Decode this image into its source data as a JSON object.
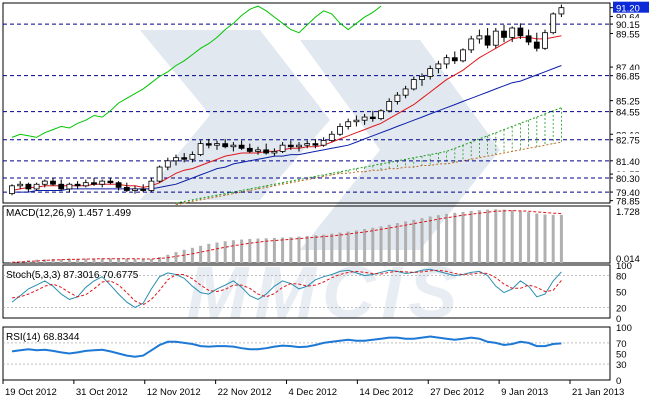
{
  "colors": {
    "background": "#ffffff",
    "frame": "#000000",
    "level": "#00008b",
    "candle_up": "#ffffff",
    "candle_down": "#000000",
    "tenkan": "#e0161b",
    "kijun": "#0c1fa8",
    "chikou": "#00c400",
    "cloud": "#1c9a1c",
    "cloud_alt": "#c06a20",
    "macd_hist": "#b0b0b0",
    "macd_signal": "#e0161b",
    "stoch_main": "#2a8fb0",
    "stoch_signal": "#e0161b",
    "rsi": "#1e78d6",
    "price_tag_bg": "#0c2ad8",
    "price_tag_text": "#ffffff",
    "watermark": "#c9d6e2"
  },
  "watermark": {
    "text": "MMCIS"
  },
  "chart_data": [
    {
      "type": "candlestick",
      "panel": "price",
      "y_axis_labels": [
        "91.20",
        "90.64",
        "90.15",
        "89.55",
        "87.40",
        "86.85",
        "85.25",
        "84.55",
        "83.10",
        "82.75",
        "81.40",
        "80.55",
        "80.30",
        "79.40",
        "78.85"
      ],
      "highlighted_labels": [
        "91.20",
        "90.15",
        "86.85",
        "84.55",
        "82.75",
        "81.40",
        "80.30",
        "79.40"
      ],
      "horizontal_levels": [
        90.15,
        86.85,
        84.55,
        82.75,
        81.4,
        80.3,
        79.4
      ],
      "ylim": [
        78.7,
        91.5
      ],
      "x_tick_labels": [
        "19 Oct 2012",
        "31 Oct 2012",
        "12 Nov 2012",
        "22 Nov 2012",
        "4 Dec 2012",
        "14 Dec 2012",
        "27 Dec 2012",
        "9 Jan 2013",
        "21 Jan 2013"
      ],
      "ohlc": [
        [
          79.3,
          79.9,
          79.2,
          79.8
        ],
        [
          79.8,
          80.1,
          79.6,
          79.9
        ],
        [
          79.9,
          80.0,
          79.4,
          79.6
        ],
        [
          79.6,
          80.0,
          79.5,
          79.9
        ],
        [
          79.9,
          80.2,
          79.7,
          80.1
        ],
        [
          80.1,
          80.3,
          79.8,
          79.9
        ],
        [
          79.9,
          80.2,
          79.5,
          79.6
        ],
        [
          79.6,
          80.0,
          79.4,
          79.9
        ],
        [
          79.9,
          80.1,
          79.6,
          79.8
        ],
        [
          79.8,
          80.2,
          79.7,
          80.0
        ],
        [
          80.0,
          80.3,
          79.8,
          79.9
        ],
        [
          79.9,
          80.2,
          79.7,
          80.1
        ],
        [
          80.1,
          80.3,
          79.9,
          80.0
        ],
        [
          80.0,
          80.1,
          79.5,
          79.7
        ],
        [
          79.7,
          80.0,
          79.4,
          79.5
        ],
        [
          79.5,
          79.8,
          79.3,
          79.6
        ],
        [
          79.6,
          79.9,
          79.4,
          79.5
        ],
        [
          79.5,
          80.3,
          79.4,
          80.1
        ],
        [
          80.1,
          81.1,
          80.0,
          81.0
        ],
        [
          81.0,
          81.6,
          80.8,
          81.4
        ],
        [
          81.4,
          81.8,
          81.1,
          81.6
        ],
        [
          81.6,
          81.9,
          81.3,
          81.5
        ],
        [
          81.5,
          82.0,
          81.3,
          81.8
        ],
        [
          81.8,
          82.7,
          81.7,
          82.5
        ],
        [
          82.5,
          82.8,
          82.2,
          82.4
        ],
        [
          82.4,
          82.7,
          82.1,
          82.5
        ],
        [
          82.5,
          82.8,
          82.2,
          82.3
        ],
        [
          82.3,
          82.6,
          82.0,
          82.4
        ],
        [
          82.4,
          82.7,
          82.1,
          82.2
        ],
        [
          82.2,
          82.5,
          81.9,
          82.0
        ],
        [
          82.0,
          82.3,
          81.8,
          82.1
        ],
        [
          82.1,
          82.5,
          81.8,
          81.9
        ],
        [
          81.9,
          82.2,
          81.7,
          82.0
        ],
        [
          82.0,
          82.6,
          81.9,
          82.4
        ],
        [
          82.4,
          82.7,
          82.1,
          82.3
        ],
        [
          82.3,
          82.6,
          82.0,
          82.4
        ],
        [
          82.4,
          82.7,
          82.2,
          82.5
        ],
        [
          82.5,
          82.8,
          82.2,
          82.4
        ],
        [
          82.4,
          82.9,
          82.3,
          82.7
        ],
        [
          82.7,
          83.3,
          82.6,
          83.1
        ],
        [
          83.1,
          83.8,
          83.0,
          83.6
        ],
        [
          83.6,
          84.1,
          83.4,
          83.9
        ],
        [
          83.9,
          84.3,
          83.6,
          84.0
        ],
        [
          84.0,
          84.4,
          83.7,
          84.2
        ],
        [
          84.2,
          84.6,
          83.9,
          84.1
        ],
        [
          84.1,
          84.7,
          84.0,
          84.6
        ],
        [
          84.6,
          85.4,
          84.5,
          85.2
        ],
        [
          85.2,
          85.8,
          85.0,
          85.6
        ],
        [
          85.6,
          86.2,
          85.4,
          86.0
        ],
        [
          86.0,
          86.8,
          85.9,
          86.6
        ],
        [
          86.6,
          87.0,
          86.2,
          86.8
        ],
        [
          86.8,
          87.5,
          86.6,
          87.3
        ],
        [
          87.3,
          87.8,
          87.0,
          87.6
        ],
        [
          87.6,
          88.2,
          87.3,
          88.0
        ],
        [
          88.0,
          88.4,
          87.6,
          87.8
        ],
        [
          87.8,
          88.6,
          87.7,
          88.5
        ],
        [
          88.5,
          89.4,
          88.3,
          89.2
        ],
        [
          89.2,
          89.8,
          88.9,
          89.4
        ],
        [
          89.4,
          89.9,
          88.6,
          88.8
        ],
        [
          88.8,
          89.9,
          88.6,
          89.7
        ],
        [
          89.7,
          90.1,
          89.0,
          89.3
        ],
        [
          89.3,
          90.0,
          89.0,
          89.9
        ],
        [
          89.9,
          90.2,
          89.2,
          89.4
        ],
        [
          89.4,
          89.8,
          88.8,
          89.0
        ],
        [
          89.0,
          89.6,
          88.4,
          88.6
        ],
        [
          88.6,
          89.8,
          88.5,
          89.6
        ],
        [
          89.6,
          90.9,
          89.5,
          90.8
        ],
        [
          90.8,
          91.4,
          90.6,
          91.2
        ]
      ],
      "tenkan": [
        79.5,
        79.6,
        79.7,
        79.7,
        79.8,
        79.8,
        79.8,
        79.8,
        79.8,
        79.8,
        79.9,
        79.9,
        79.9,
        79.9,
        79.8,
        79.8,
        79.7,
        79.8,
        80.0,
        80.3,
        80.6,
        80.8,
        80.9,
        81.1,
        81.3,
        81.5,
        81.7,
        81.8,
        81.9,
        81.9,
        81.9,
        82.0,
        82.0,
        82.1,
        82.2,
        82.2,
        82.3,
        82.3,
        82.4,
        82.6,
        82.8,
        83.0,
        83.2,
        83.4,
        83.6,
        83.8,
        84.1,
        84.4,
        84.7,
        85.0,
        85.4,
        85.8,
        86.2,
        86.6,
        86.9,
        87.2,
        87.6,
        88.0,
        88.3,
        88.6,
        88.9,
        89.2,
        89.3,
        89.3,
        89.2,
        89.2,
        89.3,
        89.4
      ],
      "kijun": [
        79.4,
        79.4,
        79.4,
        79.5,
        79.5,
        79.5,
        79.5,
        79.6,
        79.6,
        79.6,
        79.6,
        79.6,
        79.6,
        79.6,
        79.6,
        79.6,
        79.6,
        79.6,
        79.7,
        79.8,
        79.9,
        80.1,
        80.3,
        80.5,
        80.7,
        80.9,
        81.0,
        81.2,
        81.3,
        81.4,
        81.5,
        81.6,
        81.7,
        81.7,
        81.8,
        81.8,
        81.9,
        82.0,
        82.1,
        82.2,
        82.3,
        82.4,
        82.6,
        82.8,
        83.0,
        83.2,
        83.4,
        83.6,
        83.8,
        84.0,
        84.2,
        84.4,
        84.6,
        84.8,
        85.0,
        85.2,
        85.4,
        85.6,
        85.8,
        86.0,
        86.2,
        86.4,
        86.5,
        86.7,
        86.9,
        87.1,
        87.3,
        87.5
      ],
      "chikou": [
        82.9,
        83.1,
        83.0,
        82.9,
        83.2,
        83.4,
        83.6,
        83.5,
        83.8,
        84.0,
        84.3,
        84.2,
        84.6,
        85.1,
        85.4,
        85.7,
        86.0,
        86.4,
        86.8,
        87.1,
        87.5,
        87.8,
        88.2,
        88.6,
        88.9,
        89.3,
        89.8,
        90.2,
        90.7,
        91.1,
        91.3,
        91.0,
        90.6,
        90.2,
        89.8,
        89.6,
        90.1,
        90.6,
        91.0,
        90.8,
        90.2,
        89.8,
        90.2,
        90.6,
        90.9,
        91.3
      ],
      "senkou_a": [
        78.7,
        78.8,
        78.9,
        79.0,
        79.1,
        79.2,
        79.3,
        79.4,
        79.5,
        79.6,
        79.7,
        79.8,
        79.9,
        80.0,
        80.1,
        80.2,
        80.3,
        80.4,
        80.5,
        80.6,
        80.7,
        80.8,
        80.9,
        81.0,
        81.1,
        81.2,
        81.3,
        81.4,
        81.5,
        81.6,
        81.7,
        81.8,
        81.9,
        82.0,
        82.2,
        82.4,
        82.6,
        82.8,
        83.0,
        83.2,
        83.4,
        83.6,
        83.8,
        84.0,
        84.2,
        84.4,
        84.6,
        84.8
      ],
      "senkou_b": [
        78.6,
        78.7,
        78.8,
        78.9,
        79.0,
        79.1,
        79.2,
        79.3,
        79.4,
        79.5,
        79.6,
        79.7,
        79.8,
        79.9,
        80.0,
        80.1,
        80.2,
        80.3,
        80.4,
        80.5,
        80.6,
        80.6,
        80.7,
        80.7,
        80.8,
        80.8,
        80.9,
        80.9,
        81.0,
        81.0,
        81.1,
        81.1,
        81.2,
        81.2,
        81.3,
        81.4,
        81.5,
        81.6,
        81.7,
        81.8,
        81.9,
        82.0,
        82.1,
        82.2,
        82.3,
        82.4,
        82.5,
        82.6
      ]
    },
    {
      "type": "bar",
      "panel": "macd",
      "title": "MACD(12,26,9) 1.457 1.499",
      "y_axis_labels": [
        "1.728",
        "0.014"
      ],
      "ylim": [
        0,
        1.728
      ],
      "histogram": [
        0.02,
        0.05,
        0.08,
        0.1,
        0.11,
        0.12,
        0.12,
        0.13,
        0.13,
        0.13,
        0.14,
        0.14,
        0.14,
        0.14,
        0.13,
        0.12,
        0.11,
        0.12,
        0.18,
        0.25,
        0.33,
        0.4,
        0.46,
        0.52,
        0.58,
        0.62,
        0.66,
        0.69,
        0.71,
        0.73,
        0.74,
        0.75,
        0.76,
        0.77,
        0.78,
        0.8,
        0.82,
        0.84,
        0.86,
        0.89,
        0.92,
        0.95,
        0.99,
        1.03,
        1.07,
        1.11,
        1.16,
        1.21,
        1.26,
        1.31,
        1.36,
        1.41,
        1.45,
        1.49,
        1.52,
        1.55,
        1.58,
        1.6,
        1.62,
        1.63,
        1.62,
        1.6,
        1.57,
        1.54,
        1.5,
        1.47,
        1.46,
        1.46
      ],
      "signal": [
        0.02,
        0.03,
        0.05,
        0.06,
        0.08,
        0.09,
        0.1,
        0.11,
        0.11,
        0.12,
        0.12,
        0.13,
        0.13,
        0.13,
        0.13,
        0.13,
        0.12,
        0.12,
        0.14,
        0.16,
        0.2,
        0.24,
        0.28,
        0.33,
        0.38,
        0.43,
        0.48,
        0.52,
        0.56,
        0.6,
        0.63,
        0.66,
        0.68,
        0.7,
        0.72,
        0.74,
        0.76,
        0.78,
        0.8,
        0.82,
        0.85,
        0.88,
        0.91,
        0.94,
        0.98,
        1.02,
        1.06,
        1.1,
        1.15,
        1.19,
        1.24,
        1.28,
        1.33,
        1.37,
        1.41,
        1.45,
        1.48,
        1.51,
        1.54,
        1.57,
        1.58,
        1.59,
        1.58,
        1.57,
        1.55,
        1.53,
        1.51,
        1.5
      ]
    },
    {
      "type": "line",
      "panel": "stochastic",
      "title": "Stoch(5,3,3) 87.3016 70.6775",
      "y_axis_labels": [
        "100",
        "80",
        "50",
        "20",
        "0"
      ],
      "ylim": [
        0,
        100
      ],
      "main": [
        30,
        42,
        55,
        62,
        70,
        60,
        45,
        35,
        40,
        58,
        70,
        78,
        62,
        45,
        30,
        20,
        28,
        55,
        78,
        85,
        82,
        75,
        60,
        48,
        45,
        55,
        62,
        70,
        58,
        42,
        35,
        45,
        60,
        70,
        65,
        55,
        60,
        72,
        78,
        82,
        88,
        90,
        85,
        80,
        82,
        86,
        90,
        88,
        84,
        86,
        90,
        92,
        88,
        84,
        80,
        82,
        86,
        88,
        80,
        60,
        48,
        55,
        70,
        60,
        40,
        45,
        70,
        87
      ],
      "signal": [
        38,
        40,
        45,
        52,
        60,
        64,
        58,
        48,
        40,
        44,
        55,
        68,
        70,
        62,
        48,
        32,
        25,
        35,
        52,
        72,
        82,
        82,
        74,
        62,
        52,
        50,
        54,
        62,
        62,
        56,
        45,
        40,
        46,
        58,
        65,
        64,
        60,
        62,
        68,
        76,
        82,
        86,
        88,
        86,
        84,
        83,
        86,
        88,
        87,
        86,
        87,
        89,
        90,
        88,
        84,
        82,
        83,
        85,
        84,
        76,
        64,
        56,
        56,
        62,
        58,
        50,
        52,
        71
      ]
    },
    {
      "type": "line",
      "panel": "rsi",
      "title": "RSI(14) 68.8344",
      "y_axis_labels": [
        "100",
        "70",
        "50",
        "30",
        "0"
      ],
      "ylim": [
        0,
        100
      ],
      "values": [
        54,
        56,
        58,
        56,
        57,
        55,
        52,
        50,
        52,
        55,
        56,
        57,
        54,
        50,
        46,
        44,
        46,
        56,
        66,
        72,
        72,
        70,
        68,
        64,
        63,
        64,
        64,
        63,
        60,
        58,
        58,
        60,
        63,
        65,
        64,
        62,
        63,
        66,
        70,
        72,
        74,
        76,
        74,
        74,
        76,
        78,
        80,
        80,
        78,
        78,
        80,
        82,
        80,
        78,
        76,
        78,
        80,
        78,
        72,
        70,
        66,
        68,
        72,
        70,
        64,
        64,
        68,
        69
      ]
    }
  ]
}
